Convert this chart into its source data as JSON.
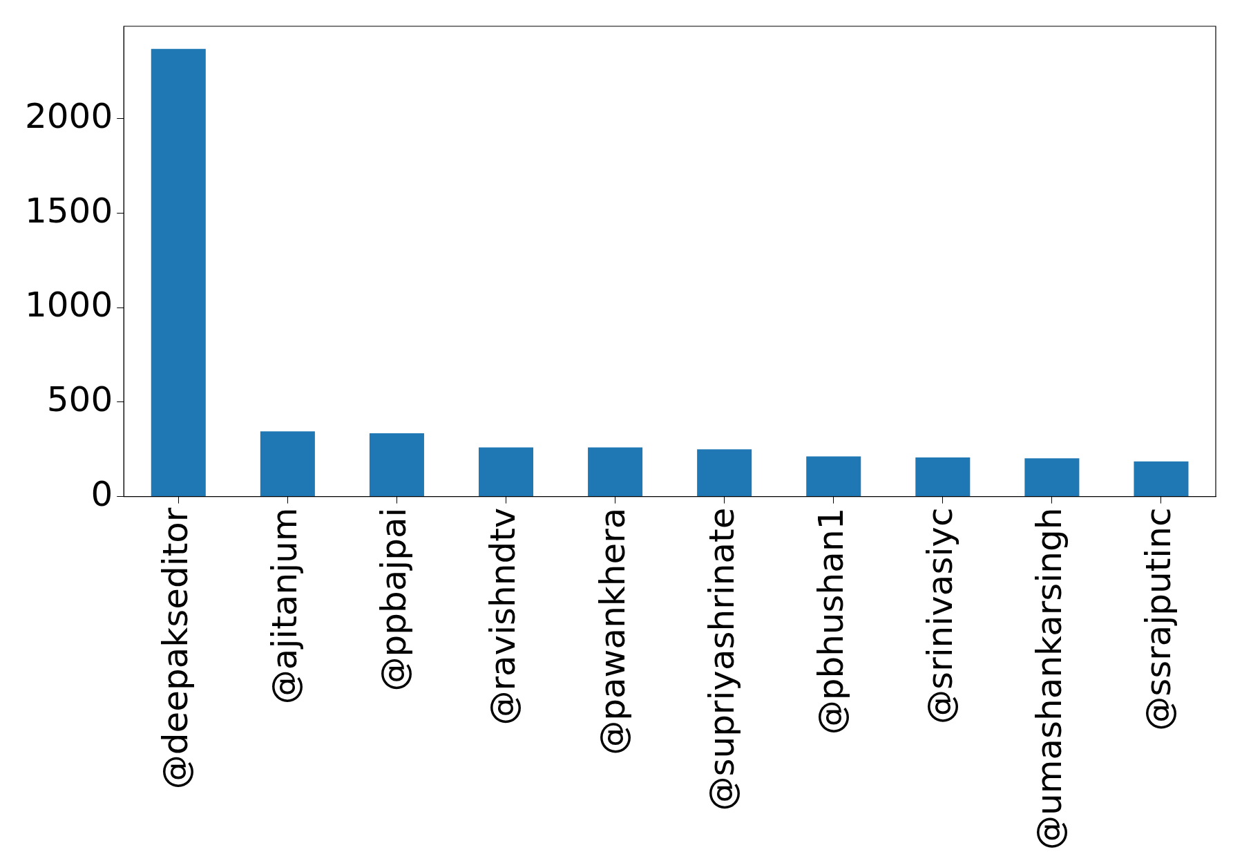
{
  "chart_data": {
    "type": "bar",
    "categories": [
      "@deepakseditor",
      "@ajitanjum",
      "@ppbajpai",
      "@ravishndtv",
      "@pawankhera",
      "@supriyashrinate",
      "@pbhushan1",
      "@srinivasiyc",
      "@umashankarsingh",
      "@ssrajputinc"
    ],
    "values": [
      2370,
      345,
      335,
      260,
      260,
      250,
      212,
      207,
      202,
      186
    ],
    "color": "#1f77b4",
    "ylim": [
      0,
      2490
    ],
    "yticks": [
      0,
      500,
      1000,
      1500,
      2000
    ],
    "grid": false,
    "legend": false
  }
}
